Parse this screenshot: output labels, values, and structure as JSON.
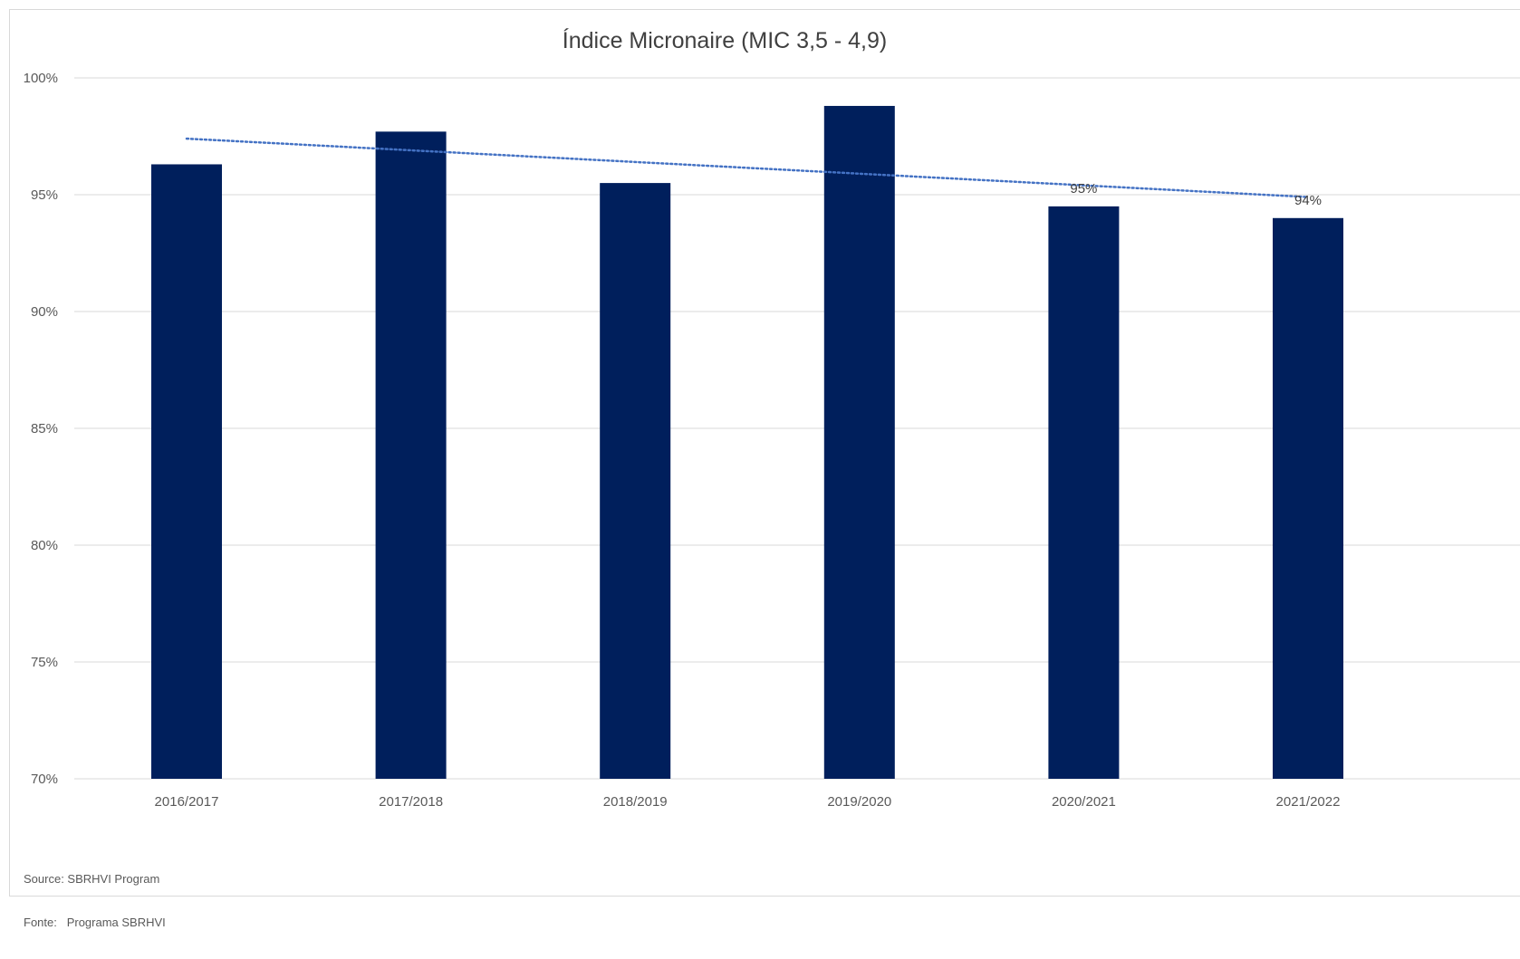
{
  "chart_data": {
    "type": "bar",
    "title": "Índice Micronaire (MIC 3,5 - 4,9)",
    "categories": [
      "2016/2017",
      "2017/2018",
      "2018/2019",
      "2019/2020",
      "2020/2021",
      "2021/2022"
    ],
    "series": [
      {
        "values": [
          96.3,
          97.7,
          95.5,
          98.8,
          94.5,
          94.0
        ],
        "data_labels": [
          "",
          "",
          "",
          "",
          "95%",
          "94%"
        ],
        "color": "#001f5c"
      }
    ],
    "trendline": {
      "type": "linear",
      "style": "dotted",
      "color": "#4472c4",
      "start": 97.4,
      "end": 94.9
    },
    "ylim": [
      70,
      100
    ],
    "yticks": [
      70,
      75,
      80,
      85,
      90,
      95,
      100
    ],
    "ytick_labels": [
      "70%",
      "75%",
      "80%",
      "85%",
      "90%",
      "95%",
      "100%"
    ],
    "grid": true,
    "xlabel": "",
    "ylabel": ""
  },
  "source": {
    "line1": "Source: SBRHVI Program",
    "line2": "Fonte:   Programa SBRHVI"
  }
}
